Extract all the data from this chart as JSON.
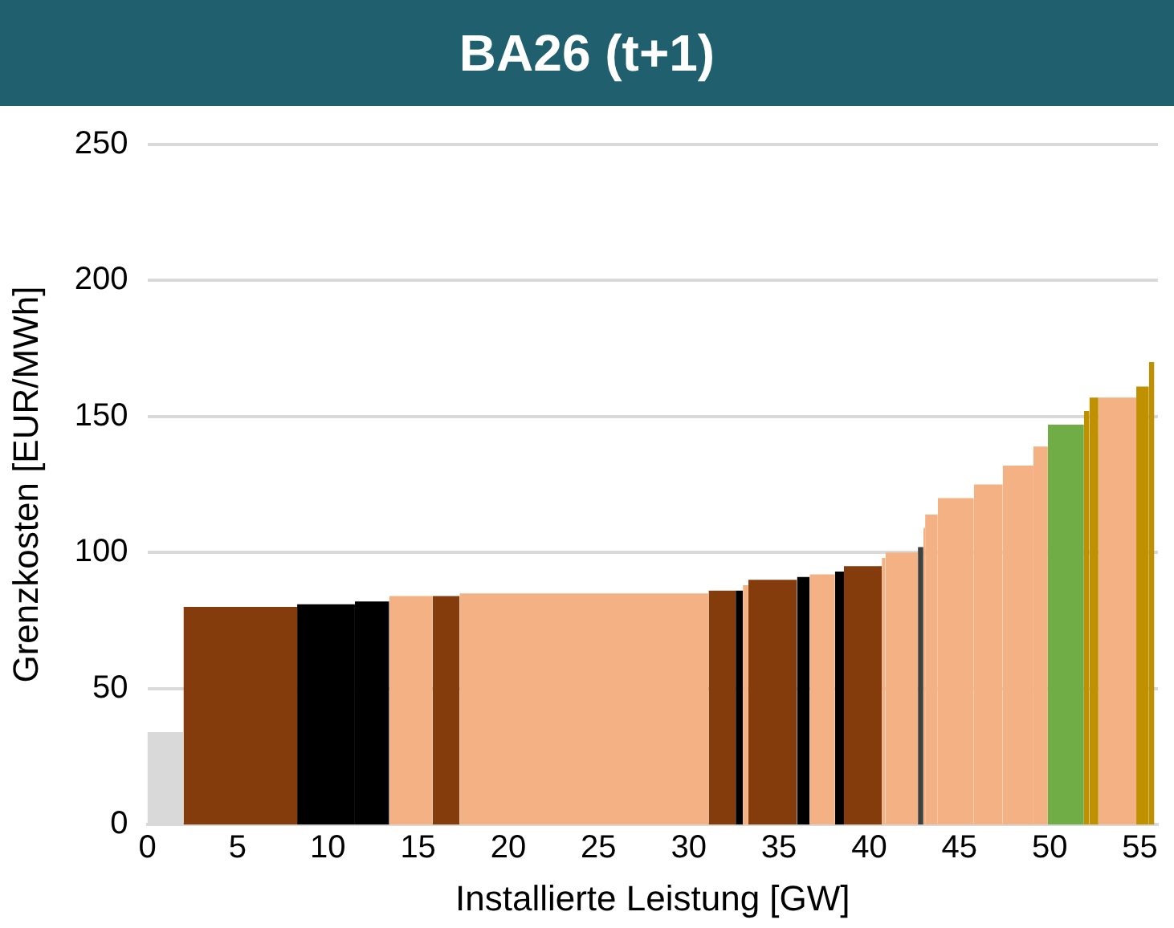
{
  "chart_data": {
    "type": "histogram",
    "title": "BA26 (t+1)",
    "xlabel": "Installierte Leistung [GW]",
    "ylabel": "Grenzkosten [EUR/MWh]",
    "bins": [
      0,
      2.0,
      8.3,
      11.5,
      13.4,
      15.8,
      17.3,
      31.1,
      32.6,
      33.0,
      33.3,
      36.0,
      36.7,
      38.1,
      38.6,
      40.7,
      40.9,
      42.7,
      43.0,
      43.1,
      43.8,
      45.8,
      47.4,
      49.1,
      49.9,
      51.9,
      52.2,
      52.7,
      54.8,
      55.5,
      55.8
    ],
    "values": [
      34,
      80,
      81,
      82,
      84,
      84,
      85,
      86,
      86,
      88,
      90,
      91,
      92,
      93,
      95,
      98,
      100,
      102,
      109,
      114,
      120,
      125,
      132,
      139,
      147,
      152,
      157,
      157,
      161,
      170
    ],
    "colors": [
      "#d9d9d9",
      "#843c0c",
      "#000000",
      "#000000",
      "#f4b183",
      "#843c0c",
      "#f4b183",
      "#843c0c",
      "#000000",
      "#f4b183",
      "#843c0c",
      "#000000",
      "#f4b183",
      "#000000",
      "#843c0c",
      "#f4b183",
      "#f4b183",
      "#404040",
      "#f4b183",
      "#f4b183",
      "#f4b183",
      "#f4b183",
      "#f4b183",
      "#f4b183",
      "#70ad47",
      "#bf9000",
      "#bf9000",
      "#f4b183",
      "#bf9000",
      "#bf9000"
    ],
    "xlim": [
      0,
      56
    ],
    "xticks": [
      0,
      5,
      10,
      15,
      20,
      25,
      30,
      35,
      40,
      45,
      50,
      55
    ],
    "ylim": [
      0,
      250
    ],
    "yticks": [
      0,
      50,
      100,
      150,
      200,
      250
    ],
    "grid": "y",
    "legend": false
  }
}
